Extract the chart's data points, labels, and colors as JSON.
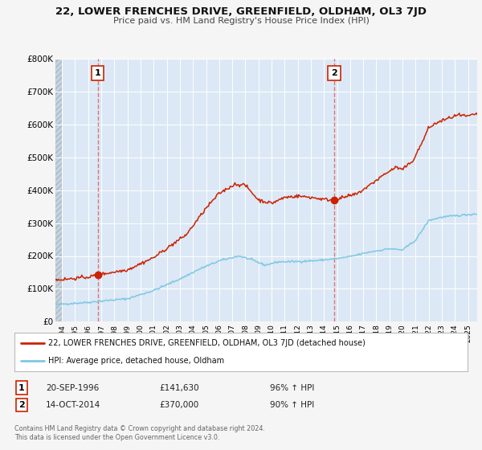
{
  "title": "22, LOWER FRENCHES DRIVE, GREENFIELD, OLDHAM, OL3 7JD",
  "subtitle": "Price paid vs. HM Land Registry's House Price Index (HPI)",
  "background_color": "#f5f5f5",
  "plot_bg_color": "#dce8f5",
  "hatch_color": "#c0c8d0",
  "grid_color": "#ffffff",
  "ylim": [
    0,
    800000
  ],
  "yticks": [
    0,
    100000,
    200000,
    300000,
    400000,
    500000,
    600000,
    700000,
    800000
  ],
  "ytick_labels": [
    "£0",
    "£100K",
    "£200K",
    "£300K",
    "£400K",
    "£500K",
    "£600K",
    "£700K",
    "£800K"
  ],
  "xlim_start": 1993.5,
  "xlim_end": 2025.7,
  "xticks": [
    1994,
    1995,
    1996,
    1997,
    1998,
    1999,
    2000,
    2001,
    2002,
    2003,
    2004,
    2005,
    2006,
    2007,
    2008,
    2009,
    2010,
    2011,
    2012,
    2013,
    2014,
    2015,
    2016,
    2017,
    2018,
    2019,
    2020,
    2021,
    2022,
    2023,
    2024,
    2025
  ],
  "hpi_line_color": "#7ec8e3",
  "price_line_color": "#cc2200",
  "marker_color": "#cc2200",
  "vline_color": "#e06060",
  "sale1_x": 1996.72,
  "sale1_y": 141630,
  "sale2_x": 2014.79,
  "sale2_y": 370000,
  "legend_label_price": "22, LOWER FRENCHES DRIVE, GREENFIELD, OLDHAM, OL3 7JD (detached house)",
  "legend_label_hpi": "HPI: Average price, detached house, Oldham",
  "note1_num": "1",
  "note1_date": "20-SEP-1996",
  "note1_price": "£141,630",
  "note1_hpi": "96% ↑ HPI",
  "note2_num": "2",
  "note2_date": "14-OCT-2014",
  "note2_price": "£370,000",
  "note2_hpi": "90% ↑ HPI",
  "footer": "Contains HM Land Registry data © Crown copyright and database right 2024.\nThis data is licensed under the Open Government Licence v3.0."
}
